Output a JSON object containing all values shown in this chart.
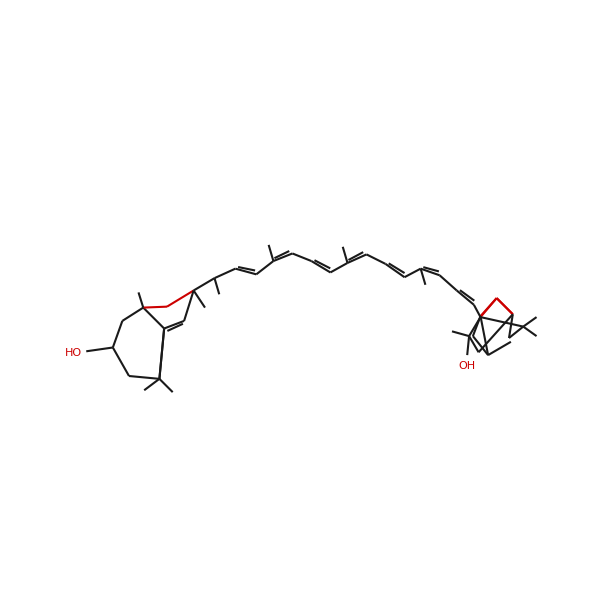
{
  "background_color": "#ffffff",
  "bond_color": "#1a1a1a",
  "oxygen_color": "#ff0000",
  "ho_color": "#ff0000",
  "line_width": 1.5,
  "figsize": [
    6.0,
    6.0
  ],
  "dpi": 100
}
